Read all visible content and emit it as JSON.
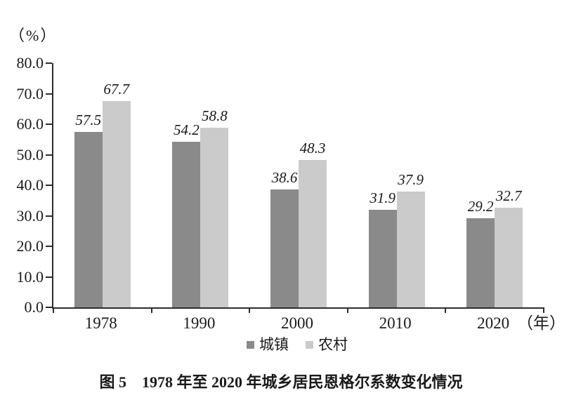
{
  "chart_data": {
    "type": "bar",
    "title": "图 5　1978 年至 2020 年城乡居民恩格尔系数变化情况",
    "unit_label": "（%）",
    "x_axis_suffix": "（年）",
    "categories": [
      "1978",
      "1990",
      "2000",
      "2010",
      "2020"
    ],
    "series": [
      {
        "name": "城镇",
        "color": "#8a8a8a",
        "values": [
          57.5,
          54.2,
          38.6,
          31.9,
          29.2
        ]
      },
      {
        "name": "农村",
        "color": "#cbcbcb",
        "values": [
          67.7,
          58.8,
          48.3,
          37.9,
          32.7
        ]
      }
    ],
    "ylim": [
      0,
      80
    ],
    "y_tick_labels": [
      "80.0",
      "70.0",
      "60.0",
      "50.0",
      "40.0",
      "30.0",
      "20.0",
      "10.0",
      "0.0"
    ],
    "grid": false,
    "legend_position": "bottom",
    "axis_color": "#2f2b2c",
    "text_color": "#1a1a1a"
  }
}
